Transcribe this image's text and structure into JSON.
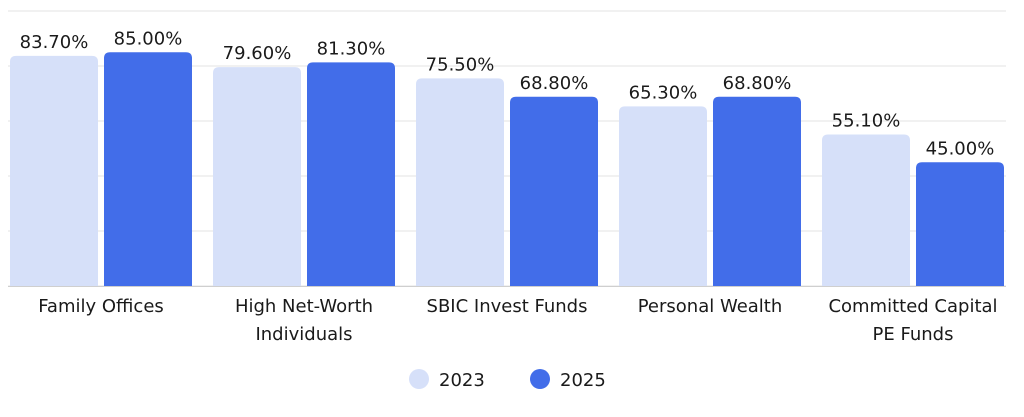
{
  "chart_data": {
    "type": "bar",
    "categories": [
      [
        "Family Offices"
      ],
      [
        "High Net-Worth",
        "Individuals"
      ],
      [
        "SBIC Invest Funds"
      ],
      [
        "Personal Wealth"
      ],
      [
        "Committed Capital",
        "PE Funds"
      ]
    ],
    "series": [
      {
        "name": "2023",
        "values": [
          83.7,
          79.6,
          75.5,
          65.3,
          55.1
        ],
        "labels": [
          "83.70%",
          "79.60%",
          "75.50%",
          "65.30%",
          "55.10%"
        ],
        "color": "#d6e0f9"
      },
      {
        "name": "2025",
        "values": [
          85.0,
          81.3,
          68.8,
          68.8,
          45.0
        ],
        "labels": [
          "85.00%",
          "81.30%",
          "68.80%",
          "68.80%",
          "45.00%"
        ],
        "color": "#426de9"
      }
    ],
    "ylim": [
      0,
      100
    ],
    "grid": true,
    "legend_position": "bottom-center",
    "title": "",
    "xlabel": "",
    "ylabel": ""
  }
}
